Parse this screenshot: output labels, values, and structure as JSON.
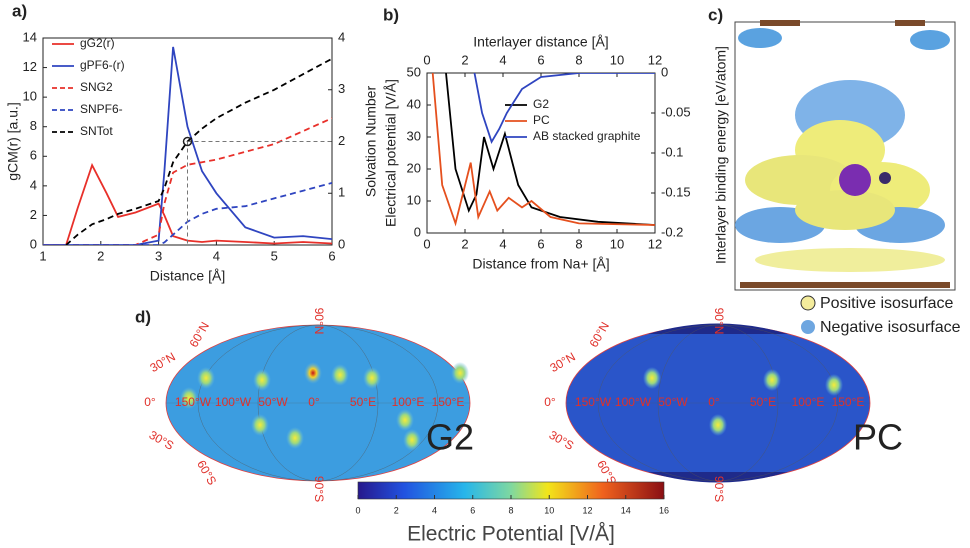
{
  "chart_data": [
    {
      "type": "line",
      "label": "a)",
      "xlabel": "Distance  [Å]",
      "ylabel": "gCM(r)  [a.u.]",
      "y2label": "Solvation Number",
      "xlim": [
        1,
        6
      ],
      "xticks": [
        1,
        2,
        3,
        4,
        5,
        6
      ],
      "ylim": [
        0,
        14
      ],
      "yticks": [
        0,
        2,
        4,
        6,
        8,
        10,
        12,
        14
      ],
      "y2lim": [
        0,
        4
      ],
      "y2ticks": [
        0,
        1,
        2,
        3,
        4
      ],
      "x": [
        1,
        1.4,
        1.6,
        1.85,
        2.1,
        2.3,
        2.6,
        3.0,
        3.1,
        3.25,
        3.5,
        3.75,
        4.0,
        4.5,
        5.0,
        5.5,
        6.0
      ],
      "series": [
        {
          "name": "gG2(r)",
          "color": "#e8302a",
          "dashed": false,
          "values": [
            0,
            0,
            2.5,
            5.4,
            3.5,
            1.9,
            2.2,
            2.8,
            2.0,
            0.6,
            0.3,
            0.2,
            0.3,
            0.2,
            0.1,
            0.2,
            0.1
          ]
        },
        {
          "name": "gPF6-(r)",
          "color": "#2f45c0",
          "dashed": false,
          "values": [
            0,
            0,
            0,
            0,
            0,
            0,
            0,
            0.3,
            5,
            13.4,
            8,
            5,
            3.5,
            1.2,
            0.5,
            0.6,
            0.4
          ]
        },
        {
          "name": "SNG2",
          "color": "#e8302a",
          "dashed": true,
          "axis": "y2",
          "values": [
            0,
            0,
            0,
            0,
            0,
            0,
            0,
            0.2,
            0.8,
            1.4,
            1.55,
            1.6,
            1.65,
            1.8,
            1.95,
            2.2,
            2.45
          ]
        },
        {
          "name": "SNPF6-",
          "color": "#2f45c0",
          "dashed": true,
          "axis": "y2",
          "values": [
            0,
            0,
            0,
            0,
            0,
            0,
            0,
            0,
            0.05,
            0.2,
            0.45,
            0.6,
            0.7,
            0.75,
            0.9,
            1.05,
            1.2
          ]
        },
        {
          "name": "SNTot",
          "color": "#000000",
          "dashed": true,
          "axis": "y2",
          "values": [
            null,
            0,
            0.2,
            0.4,
            0.5,
            0.6,
            0.7,
            0.85,
            1.1,
            1.6,
            2.0,
            2.25,
            2.45,
            2.75,
            3.0,
            3.3,
            3.6
          ]
        }
      ],
      "marker": {
        "x": 3.5,
        "y2": 2
      }
    },
    {
      "type": "line",
      "label": "b)",
      "xlabel": "Distance from Na+ [Å]",
      "x2label": "Interlayer distance  [Å]",
      "ylabel": "Electrical potential [V/Å]",
      "y2label": "Interlayer binding energy [eV/atom]",
      "xlim": [
        0,
        12
      ],
      "xticks": [
        0,
        2,
        4,
        6,
        8,
        10,
        12
      ],
      "x2lim": [
        0,
        12
      ],
      "x2ticks": [
        0,
        2,
        4,
        6,
        8,
        10,
        12
      ],
      "ylim": [
        0,
        50
      ],
      "yticks": [
        0,
        10,
        20,
        30,
        40,
        50
      ],
      "y2lim": [
        -0.2,
        0
      ],
      "y2ticks": [
        0,
        -0.05,
        -0.1,
        -0.15,
        -0.2
      ],
      "series": [
        {
          "name": "G2",
          "color": "#000000",
          "x": [
            1.0,
            1.5,
            2.2,
            2.6,
            3.0,
            3.5,
            4.1,
            4.8,
            5.5,
            7,
            9,
            12
          ],
          "values": [
            50,
            20,
            7,
            12,
            30,
            20,
            31,
            15,
            8,
            5,
            3.5,
            2.5
          ]
        },
        {
          "name": "PC",
          "color": "#e5501e",
          "x": [
            0.3,
            0.8,
            1.5,
            2.3,
            2.7,
            3.3,
            3.7,
            4.3,
            5.0,
            5.5,
            6.5,
            8,
            12
          ],
          "values": [
            50,
            15,
            3,
            22,
            5,
            13,
            7,
            11,
            8,
            10,
            5,
            3,
            2.5
          ]
        },
        {
          "name": "AB stacked graphite",
          "color": "#2f45c0",
          "axis": "y2",
          "xaxis": "x2",
          "x": [
            2.5,
            2.9,
            3.4,
            3.8,
            4.2,
            5.0,
            6.0,
            8.0,
            12.0
          ],
          "values": [
            0,
            -0.05,
            -0.086,
            -0.07,
            -0.05,
            -0.02,
            -0.005,
            0,
            0
          ]
        }
      ]
    }
  ],
  "panel_c": {
    "label": "c)",
    "legend": [
      "Positive isosurface",
      "Negative isosurface"
    ]
  },
  "panel_d": {
    "label": "d)",
    "maps": [
      {
        "title": "G2",
        "lat_labels": [
          "90°N",
          "60°N",
          "30°N",
          "0°",
          "30°S",
          "60°S",
          "90°S"
        ],
        "lon_labels": [
          "150°W",
          "100°W",
          "50°W",
          "0°",
          "50°E",
          "100°E",
          "150°E"
        ]
      },
      {
        "title": "PC",
        "lat_labels": [
          "90°N",
          "60°N",
          "30°N",
          "0°",
          "30°S",
          "60°S",
          "90°S"
        ],
        "lon_labels": [
          "150°W",
          "100°W",
          "50°W",
          "0°",
          "50°E",
          "100°E",
          "150°E"
        ]
      }
    ],
    "colorbar": {
      "label": "Electric Potential  [V/Å]",
      "lim": [
        0,
        16
      ],
      "ticks": [
        0,
        2,
        4,
        6,
        8,
        10,
        12,
        14,
        16
      ]
    }
  }
}
